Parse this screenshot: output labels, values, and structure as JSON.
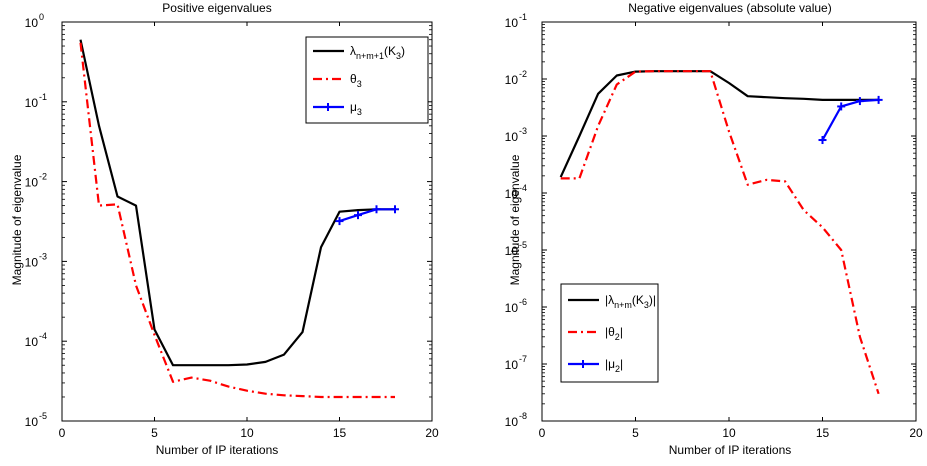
{
  "chart_data": [
    {
      "type": "line",
      "title": "Positive eigenvalues",
      "xlabel": "Number of IP iterations",
      "ylabel": "Magnitude of eigenvalue",
      "xlim": [
        0,
        20
      ],
      "ylim": [
        1e-05,
        1
      ],
      "yscale": "log",
      "xticks": [
        0,
        5,
        10,
        15,
        20
      ],
      "yticks": [
        1e-05,
        0.0001,
        0.001,
        0.01,
        0.1,
        1
      ],
      "ytick_exponents": [
        "-5",
        "-4",
        "-3",
        "-2",
        "-1",
        "0"
      ],
      "grid": false,
      "legend_position": "top-right",
      "series": [
        {
          "legend_main": "λ",
          "legend_sub": "n+m+1",
          "legend_tail": "(K",
          "legend_sub2": "3",
          "legend_end": ")",
          "color": "#000000",
          "style": "solid",
          "marker": "none",
          "x": [
            1,
            2,
            3,
            4,
            5,
            6,
            7,
            8,
            9,
            10,
            11,
            12,
            13,
            14,
            15,
            16,
            17,
            18
          ],
          "y": [
            0.6,
            0.05,
            0.0065,
            0.005,
            0.00014,
            5e-05,
            5e-05,
            5e-05,
            5e-05,
            5.1e-05,
            5.5e-05,
            6.8e-05,
            0.00013,
            0.0015,
            0.0042,
            0.0044,
            0.0045,
            0.0045
          ]
        },
        {
          "legend_main": "θ",
          "legend_sub": "3",
          "legend_tail": "",
          "legend_sub2": "",
          "legend_end": "",
          "color": "#ff0000",
          "style": "dashdot",
          "marker": "none",
          "x": [
            1,
            2,
            3,
            4,
            5,
            6,
            7,
            8,
            9,
            10,
            11,
            12,
            13,
            14,
            15,
            16,
            17,
            18
          ],
          "y": [
            0.55,
            0.005,
            0.0052,
            0.0005,
            0.00012,
            3.1e-05,
            3.5e-05,
            3.2e-05,
            2.7e-05,
            2.4e-05,
            2.2e-05,
            2.1e-05,
            2.05e-05,
            2e-05,
            2e-05,
            2e-05,
            2e-05,
            2e-05
          ]
        },
        {
          "legend_main": "μ",
          "legend_sub": "3",
          "legend_tail": "",
          "legend_sub2": "",
          "legend_end": "",
          "color": "#0000ff",
          "style": "solid",
          "marker": "plus",
          "x": [
            15,
            16,
            17,
            18
          ],
          "y": [
            0.0032,
            0.0038,
            0.0045,
            0.0045
          ]
        }
      ]
    },
    {
      "type": "line",
      "title": "Negative eigenvalues (absolute value)",
      "xlabel": "Number of IP iterations",
      "ylabel": "Magnitude of eigenvalue",
      "xlim": [
        0,
        20
      ],
      "ylim": [
        1e-08,
        0.1
      ],
      "yscale": "log",
      "xticks": [
        0,
        5,
        10,
        15,
        20
      ],
      "yticks": [
        1e-08,
        1e-07,
        1e-06,
        1e-05,
        0.0001,
        0.001,
        0.01,
        0.1
      ],
      "ytick_exponents": [
        "-8",
        "-7",
        "-6",
        "-5",
        "-4",
        "-3",
        "-2",
        "-1"
      ],
      "grid": false,
      "legend_position": "bottom-left",
      "series": [
        {
          "legend_main": "|λ",
          "legend_sub": "n+m",
          "legend_tail": "(K",
          "legend_sub2": "3",
          "legend_end": ")|",
          "color": "#000000",
          "style": "solid",
          "marker": "none",
          "x": [
            1,
            2,
            3,
            4,
            5,
            6,
            7,
            8,
            9,
            10,
            11,
            12,
            13,
            14,
            15,
            16,
            17,
            18
          ],
          "y": [
            0.00019,
            0.001,
            0.0055,
            0.0115,
            0.0135,
            0.0137,
            0.0137,
            0.0137,
            0.0137,
            0.0085,
            0.005,
            0.0048,
            0.0046,
            0.0045,
            0.0043,
            0.0043,
            0.0043,
            0.0043
          ]
        },
        {
          "legend_main": "|θ",
          "legend_sub": "2",
          "legend_tail": "|",
          "legend_sub2": "",
          "legend_end": "",
          "color": "#ff0000",
          "style": "dashdot",
          "marker": "none",
          "x": [
            1,
            2,
            3,
            4,
            5,
            6,
            7,
            8,
            9,
            10,
            11,
            12,
            13,
            14,
            15,
            16,
            17,
            18
          ],
          "y": [
            0.00018,
            0.00018,
            0.0015,
            0.008,
            0.0135,
            0.0137,
            0.0137,
            0.0137,
            0.0137,
            0.0012,
            0.00014,
            0.00017,
            0.00016,
            5e-05,
            2.5e-05,
            1e-05,
            3e-07,
            3e-08
          ]
        },
        {
          "legend_main": "|μ",
          "legend_sub": "2",
          "legend_tail": "|",
          "legend_sub2": "",
          "legend_end": "",
          "color": "#0000ff",
          "style": "solid",
          "marker": "plus",
          "x": [
            15,
            16,
            17,
            18
          ],
          "y": [
            0.00085,
            0.0033,
            0.0041,
            0.0043
          ]
        }
      ]
    }
  ]
}
